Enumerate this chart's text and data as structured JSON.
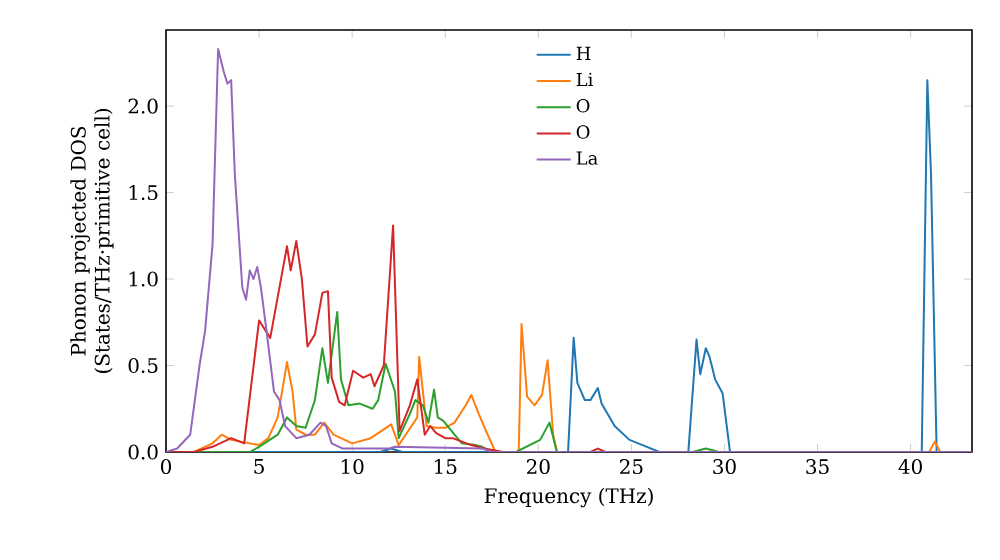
{
  "chart_data": {
    "type": "line",
    "xlabel": "Frequency (THz)",
    "ylabel": "Phonon projected DOS (States/THz·primitive cell)",
    "xlim": [
      0,
      43.3
    ],
    "ylim": [
      0,
      2.44
    ],
    "xticks": [
      0,
      5,
      10,
      15,
      20,
      25,
      30,
      35,
      40
    ],
    "yticks": [
      {
        "value": 0,
        "label": "0.0"
      },
      {
        "value": 0.5,
        "label": "0.5"
      },
      {
        "value": 1,
        "label": "1.0"
      },
      {
        "value": 1.5,
        "label": "1.5"
      },
      {
        "value": 2,
        "label": "2.0"
      }
    ],
    "legend": "top",
    "series": [
      {
        "name": "H",
        "color": "#1f77b4",
        "x": [
          0,
          11.5,
          12.1,
          12.7,
          21.6,
          21.9,
          22.1,
          22.5,
          22.8,
          23.2,
          23.4,
          24.1,
          24.9,
          25.6,
          26.5,
          28.06,
          28.5,
          28.7,
          29.0,
          29.2,
          29.5,
          29.9,
          30.3,
          40.6,
          40.9,
          41.1,
          41.4,
          43.3
        ],
        "values": [
          0,
          0,
          0.02,
          0,
          0,
          0.66,
          0.4,
          0.3,
          0.3,
          0.37,
          0.28,
          0.15,
          0.07,
          0.04,
          0,
          0,
          0.65,
          0.45,
          0.6,
          0.55,
          0.42,
          0.34,
          0,
          0,
          2.15,
          1.6,
          0,
          0
        ]
      },
      {
        "name": "Li",
        "color": "#ff7f0e",
        "x": [
          0,
          1.5,
          2.5,
          3.0,
          3.5,
          4.0,
          5.0,
          5.5,
          6.0,
          6.5,
          6.8,
          7.0,
          7.5,
          8.0,
          8.5,
          9.0,
          10.0,
          11.0,
          12.1,
          12.5,
          13.0,
          13.5,
          13.6,
          14.0,
          14.5,
          15.0,
          15.5,
          16.1,
          16.4,
          16.8,
          17.2,
          17.7,
          18.95,
          19.1,
          19.4,
          19.8,
          20.2,
          20.5,
          20.8,
          21.0,
          41.0,
          41.3,
          41.6,
          43.3
        ],
        "values": [
          0,
          0,
          0.05,
          0.1,
          0.07,
          0.06,
          0.04,
          0.08,
          0.2,
          0.52,
          0.35,
          0.13,
          0.1,
          0.1,
          0.17,
          0.1,
          0.05,
          0.08,
          0.16,
          0.04,
          0.12,
          0.2,
          0.55,
          0.15,
          0.14,
          0.14,
          0.17,
          0.27,
          0.33,
          0.22,
          0.12,
          0,
          0,
          0.74,
          0.32,
          0.27,
          0.33,
          0.53,
          0.1,
          0,
          0,
          0.06,
          0,
          0
        ]
      },
      {
        "name": "O",
        "color": "#2ca02c",
        "x": [
          0,
          4.5,
          5.0,
          6.0,
          6.5,
          7.0,
          7.5,
          8.0,
          8.4,
          8.7,
          9.2,
          9.4,
          9.8,
          10.4,
          11.1,
          11.4,
          11.8,
          12.3,
          12.5,
          13.1,
          13.4,
          13.8,
          14.1,
          14.4,
          14.6,
          14.9,
          15.5,
          15.9,
          16.6,
          17.0,
          17.5,
          18.8,
          20.1,
          20.6,
          21.0,
          28.3,
          29.0,
          29.7,
          43.3
        ],
        "values": [
          0,
          0,
          0.03,
          0.1,
          0.2,
          0.15,
          0.14,
          0.3,
          0.6,
          0.4,
          0.81,
          0.42,
          0.27,
          0.28,
          0.25,
          0.3,
          0.51,
          0.35,
          0.08,
          0.22,
          0.3,
          0.27,
          0.17,
          0.36,
          0.2,
          0.18,
          0.1,
          0.05,
          0.04,
          0.03,
          0,
          0,
          0.07,
          0.17,
          0,
          0,
          0.02,
          0,
          0
        ]
      },
      {
        "name": "O",
        "color": "#d62728",
        "x": [
          0,
          1.5,
          2.5,
          3.5,
          4.2,
          5.0,
          5.6,
          6.5,
          6.7,
          7.0,
          7.3,
          7.6,
          8.0,
          8.4,
          8.7,
          8.9,
          9.3,
          9.6,
          10.05,
          10.6,
          11.0,
          11.2,
          11.7,
          12.2,
          12.55,
          13.1,
          13.5,
          13.9,
          14.2,
          14.5,
          15.0,
          15.4,
          16.4,
          17.1,
          18.1,
          22.8,
          23.2,
          23.6,
          43.3
        ],
        "values": [
          0,
          0,
          0.03,
          0.08,
          0.05,
          0.76,
          0.66,
          1.19,
          1.05,
          1.22,
          1.0,
          0.61,
          0.68,
          0.92,
          0.93,
          0.43,
          0.29,
          0.27,
          0.47,
          0.43,
          0.45,
          0.38,
          0.5,
          1.31,
          0.12,
          0.27,
          0.42,
          0.1,
          0.15,
          0.11,
          0.08,
          0.08,
          0.04,
          0.02,
          0,
          0,
          0.02,
          0,
          0
        ]
      },
      {
        "name": "La",
        "color": "#9467bd",
        "x": [
          0,
          0.6,
          1.3,
          1.8,
          2.1,
          2.5,
          2.8,
          3.1,
          3.3,
          3.5,
          3.7,
          4.1,
          4.3,
          4.5,
          4.7,
          4.9,
          5.1,
          5.4,
          5.8,
          6.1,
          6.4,
          7.0,
          7.7,
          8.3,
          8.6,
          8.9,
          9.5,
          12.0,
          12.3,
          17.0,
          17.5,
          43.3
        ],
        "values": [
          0,
          0.02,
          0.1,
          0.5,
          0.7,
          1.2,
          2.33,
          2.2,
          2.13,
          2.15,
          1.6,
          0.95,
          0.88,
          1.05,
          1.0,
          1.07,
          0.95,
          0.7,
          0.35,
          0.3,
          0.15,
          0.08,
          0.1,
          0.17,
          0.15,
          0.05,
          0.02,
          0.02,
          0.03,
          0.02,
          0,
          0
        ]
      }
    ]
  }
}
